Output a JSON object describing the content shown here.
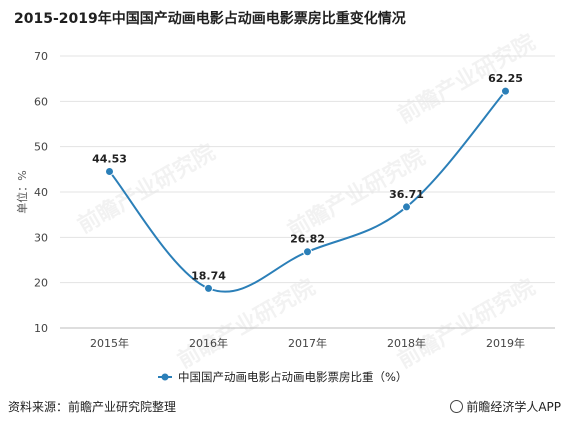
{
  "chart_data": {
    "type": "line",
    "title": "2015-2019年中国国产动画电影占动画电影票房比重变化情况",
    "ylabel": "单位：%",
    "xlabel": "",
    "x": [
      "2015年",
      "2016年",
      "2017年",
      "2018年",
      "2019年"
    ],
    "series": [
      {
        "name": "中国国产动画电影占动画电影票房比重（%）",
        "values": [
          44.53,
          18.74,
          26.82,
          36.71,
          62.25
        ]
      }
    ],
    "data_labels": [
      "44.53",
      "18.74",
      "26.82",
      "36.71",
      "62.25"
    ],
    "ylim": [
      10,
      70
    ],
    "yticks": [
      "10",
      "20",
      "30",
      "40",
      "50",
      "60",
      "70"
    ],
    "grid": true,
    "legend_position": "bottom",
    "line_color": "#2b7fb8",
    "smooth": true
  },
  "footer": {
    "source": "资料来源：前瞻产业研究院整理",
    "brand": "前瞻经济学人APP"
  },
  "watermark": {
    "text": "前瞻产业研究院"
  }
}
